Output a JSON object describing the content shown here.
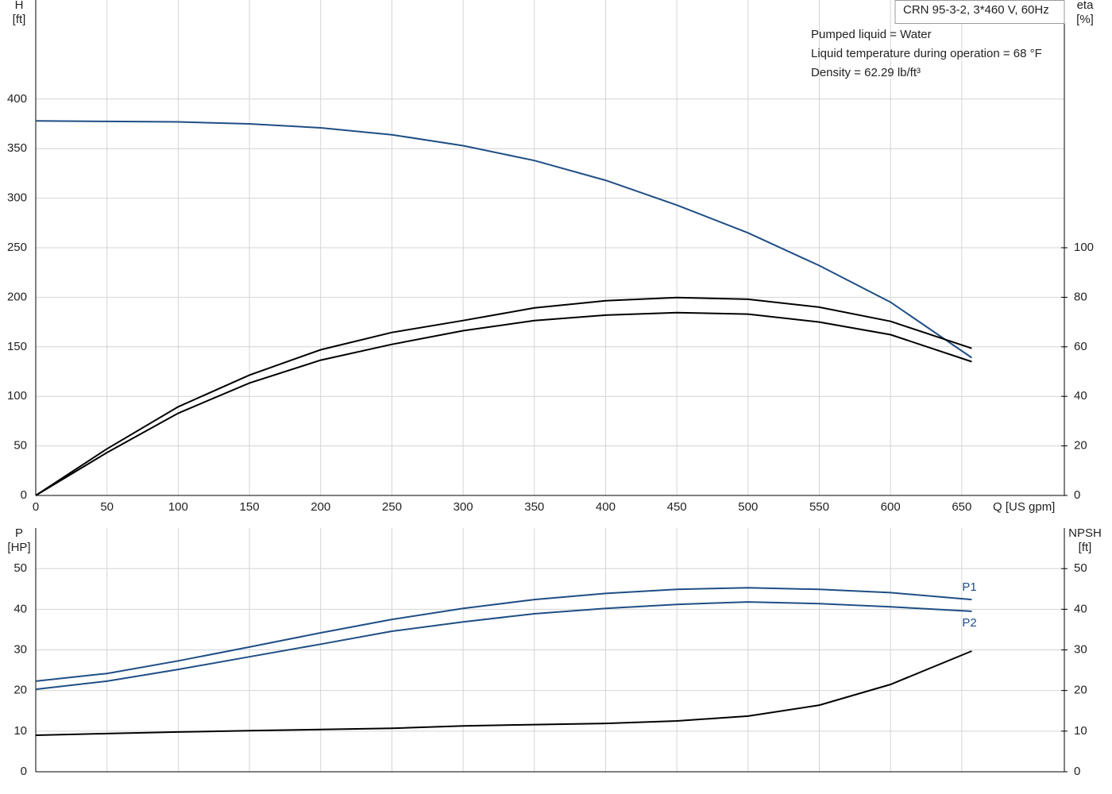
{
  "chart_data": [
    {
      "type": "line",
      "title": "CRN 95-3-2, 3*460 V, 60Hz",
      "annotations": [
        "Pumped liquid = Water",
        "Liquid temperature during operation = 68 °F",
        "Density = 62.29 lb/ft³"
      ],
      "xlabel": "Q [US gpm]",
      "ylabel": [
        "H",
        "[ft]"
      ],
      "y2label": [
        "eta",
        "[%]"
      ],
      "xlim": [
        0,
        722
      ],
      "xticks": [
        0,
        50,
        100,
        150,
        200,
        250,
        300,
        350,
        400,
        450,
        500,
        550,
        600,
        650
      ],
      "ylim": [
        0,
        500
      ],
      "yticks": [
        0,
        50,
        100,
        150,
        200,
        250,
        300,
        350,
        400
      ],
      "y2lim": [
        0,
        200
      ],
      "y2ticks": [
        0,
        20,
        40,
        60,
        80,
        100
      ],
      "grid": true,
      "x": [
        0,
        50,
        100,
        150,
        200,
        250,
        300,
        350,
        400,
        450,
        500,
        550,
        600,
        657
      ],
      "series": [
        {
          "color": "#1f4e85",
          "axis": "y",
          "values": [
            378,
            377.5,
            377,
            375,
            371,
            364,
            353,
            338,
            318,
            293,
            265,
            232,
            195,
            139
          ]
        },
        {
          "color": "#000000",
          "axis": "y2",
          "values": [
            0,
            18.8,
            35.8,
            48.6,
            58.8,
            65.8,
            70.6,
            75.7,
            78.6,
            79.9,
            79.2,
            76,
            70.3,
            59.4
          ]
        },
        {
          "color": "#000000",
          "axis": "y2",
          "values": [
            0,
            17.3,
            33.2,
            45.4,
            54.6,
            61,
            66.5,
            70.6,
            72.8,
            73.8,
            73.2,
            70,
            64.9,
            54
          ]
        }
      ]
    },
    {
      "type": "line",
      "ylabel": [
        "P",
        "[HP]"
      ],
      "y2label": [
        "NPSH",
        "[ft]"
      ],
      "ylim": [
        0,
        60
      ],
      "yticks": [
        0,
        10,
        20,
        30,
        40,
        50
      ],
      "y2lim": [
        0,
        60
      ],
      "y2ticks": [
        0,
        10,
        20,
        30,
        40,
        50
      ],
      "grid": true,
      "x": [
        0,
        50,
        100,
        150,
        200,
        250,
        300,
        350,
        400,
        450,
        500,
        550,
        600,
        657
      ],
      "series": [
        {
          "name": "P1",
          "color": "#1f4e85",
          "axis": "y",
          "values": [
            22.3,
            24.2,
            27.3,
            30.7,
            34.2,
            37.5,
            40.2,
            42.4,
            43.9,
            44.9,
            45.3,
            44.9,
            44.1,
            42.4
          ]
        },
        {
          "name": "P2",
          "color": "#1f4e85",
          "axis": "y",
          "values": [
            20.3,
            22.3,
            25.2,
            28.3,
            31.4,
            34.6,
            36.9,
            38.9,
            40.2,
            41.2,
            41.8,
            41.4,
            40.6,
            39.5
          ]
        },
        {
          "color": "#000000",
          "axis": "y2",
          "values": [
            9,
            9.4,
            9.8,
            10.1,
            10.4,
            10.7,
            11.3,
            11.6,
            11.9,
            12.5,
            13.7,
            16.4,
            21.5,
            29.7
          ]
        }
      ]
    }
  ]
}
